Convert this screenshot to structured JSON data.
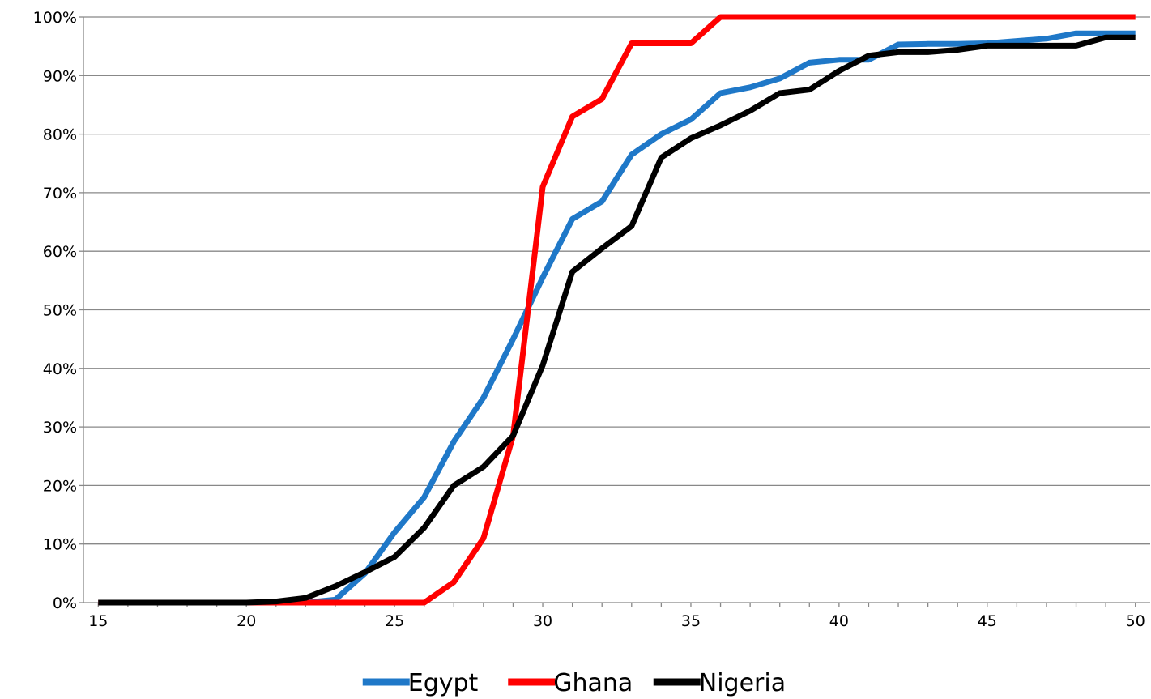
{
  "chart_data": {
    "type": "line",
    "title": "",
    "xlabel": "",
    "ylabel": "",
    "xlim": [
      15,
      50
    ],
    "ylim": [
      0,
      100
    ],
    "x_ticks": [
      15,
      20,
      25,
      30,
      35,
      40,
      45,
      50
    ],
    "x_tick_labels": [
      "15",
      "20",
      "25",
      "30",
      "35",
      "40",
      "45",
      "50"
    ],
    "y_ticks": [
      0,
      10,
      20,
      30,
      40,
      50,
      60,
      70,
      80,
      90,
      100
    ],
    "y_tick_labels": [
      "0%",
      "10%",
      "20%",
      "30%",
      "40%",
      "50%",
      "60%",
      "70%",
      "80%",
      "90%",
      "100%"
    ],
    "grid": "horizontal",
    "legend_position": "bottom",
    "x": [
      15,
      16,
      17,
      18,
      19,
      20,
      21,
      22,
      23,
      24,
      25,
      26,
      27,
      28,
      29,
      30,
      31,
      32,
      33,
      34,
      35,
      36,
      37,
      38,
      39,
      40,
      41,
      42,
      43,
      44,
      45,
      46,
      47,
      48,
      49,
      50
    ],
    "series": [
      {
        "name": "Egypt",
        "color": "#1F78C8",
        "values": [
          0,
          0,
          0,
          0,
          0,
          0,
          0,
          0,
          0.5,
          5,
          12,
          18,
          27.5,
          35,
          45,
          55.5,
          65.5,
          68.5,
          76.5,
          80,
          82.5,
          87,
          88,
          89.5,
          92.2,
          92.7,
          92.7,
          95.3,
          95.4,
          95.4,
          95.5,
          95.9,
          96.3,
          97.2,
          97.2,
          97.2
        ]
      },
      {
        "name": "Ghana",
        "color": "#FF0000",
        "values": [
          0,
          0,
          0,
          0,
          0,
          0,
          0,
          0,
          0,
          0,
          0,
          0,
          3.5,
          11,
          28.5,
          71,
          83,
          86,
          95.5,
          95.5,
          95.5,
          100,
          100,
          100,
          100,
          100,
          100,
          100,
          100,
          100,
          100,
          100,
          100,
          100,
          100,
          100
        ]
      },
      {
        "name": "Nigeria",
        "color": "#000000",
        "values": [
          0,
          0,
          0,
          0,
          0,
          0,
          0.2,
          0.8,
          2.8,
          5.2,
          7.8,
          12.8,
          20,
          23.2,
          28.5,
          40.5,
          56.5,
          60.5,
          64.3,
          76,
          79.3,
          81.5,
          84,
          87,
          87.6,
          90.8,
          93.4,
          94,
          94,
          94.4,
          95.1,
          95.1,
          95.1,
          95.1,
          96.5,
          96.5
        ]
      }
    ]
  }
}
